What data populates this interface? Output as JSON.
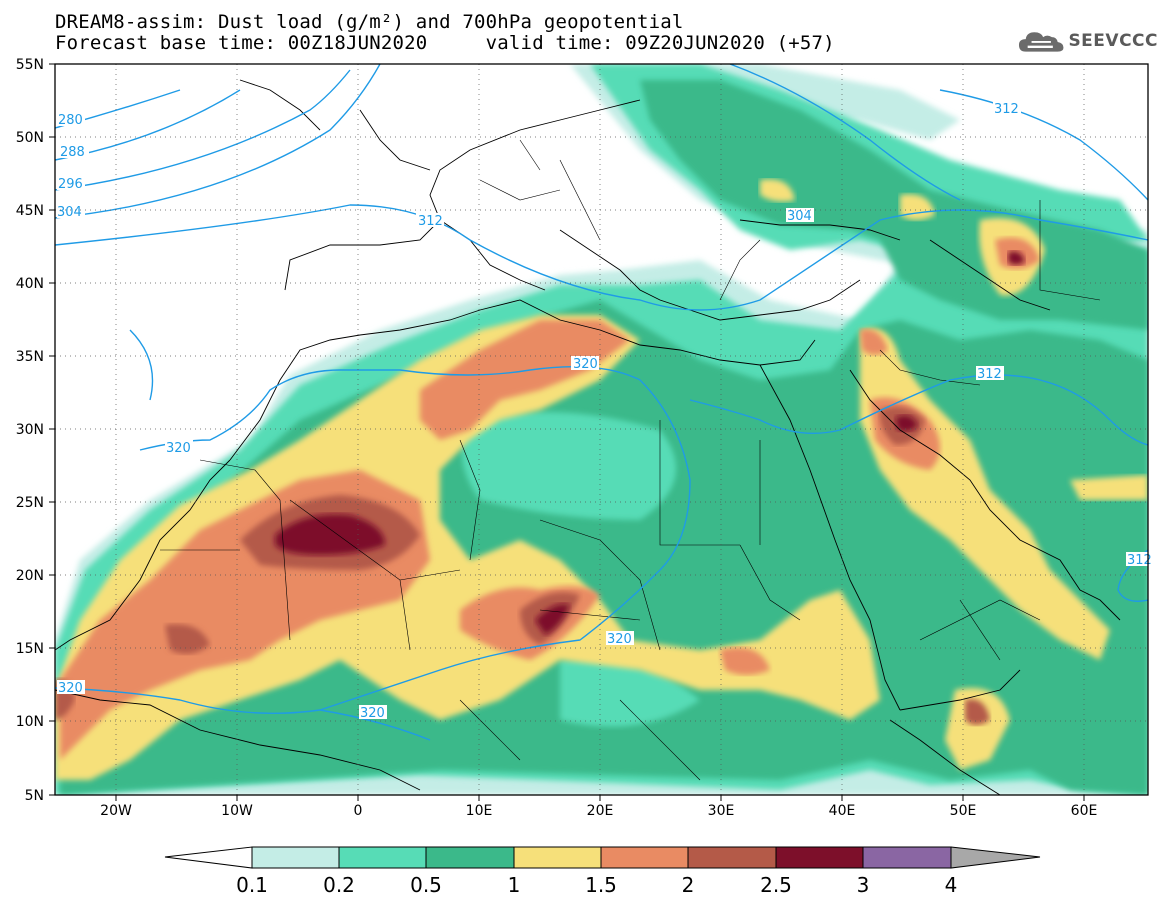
{
  "header": {
    "title_line1": "DREAM8-assim: Dust load (g/m²) and 700hPa geopotential",
    "title_line2": "Forecast base time: 00Z18JUN2020     valid time: 09Z20JUN2020 (+57)",
    "logo_text": "SEEVCCC"
  },
  "map": {
    "lat_labels": [
      "55N",
      "50N",
      "45N",
      "40N",
      "35N",
      "30N",
      "25N",
      "20N",
      "15N",
      "10N",
      "5N"
    ],
    "lon_labels": [
      "20W",
      "10W",
      "0",
      "10E",
      "20E",
      "30E",
      "40E",
      "50E",
      "60E"
    ],
    "contour_labels": [
      "280",
      "288",
      "296",
      "304",
      "312",
      "320",
      "312",
      "304",
      "312",
      "320",
      "320",
      "320",
      "312"
    ]
  },
  "legend": {
    "tick_labels": [
      "0.1",
      "0.2",
      "0.5",
      "1",
      "1.5",
      "2",
      "2.5",
      "3",
      "4"
    ],
    "colors": [
      "#c4ede6",
      "#57dcb6",
      "#3bb98a",
      "#f6e07a",
      "#e98b63",
      "#b45a48",
      "#7d0f2a",
      "#8a66a3",
      "#a8a8a8"
    ]
  },
  "colors": {
    "light_dust": "#c4ede6",
    "mint": "#57dcb6",
    "green": "#3bb98a",
    "yellow": "#f6e07a",
    "orange": "#e98b63",
    "brown": "#b45a48",
    "maroon": "#7d0f2a",
    "contour": "#1f9be6"
  }
}
